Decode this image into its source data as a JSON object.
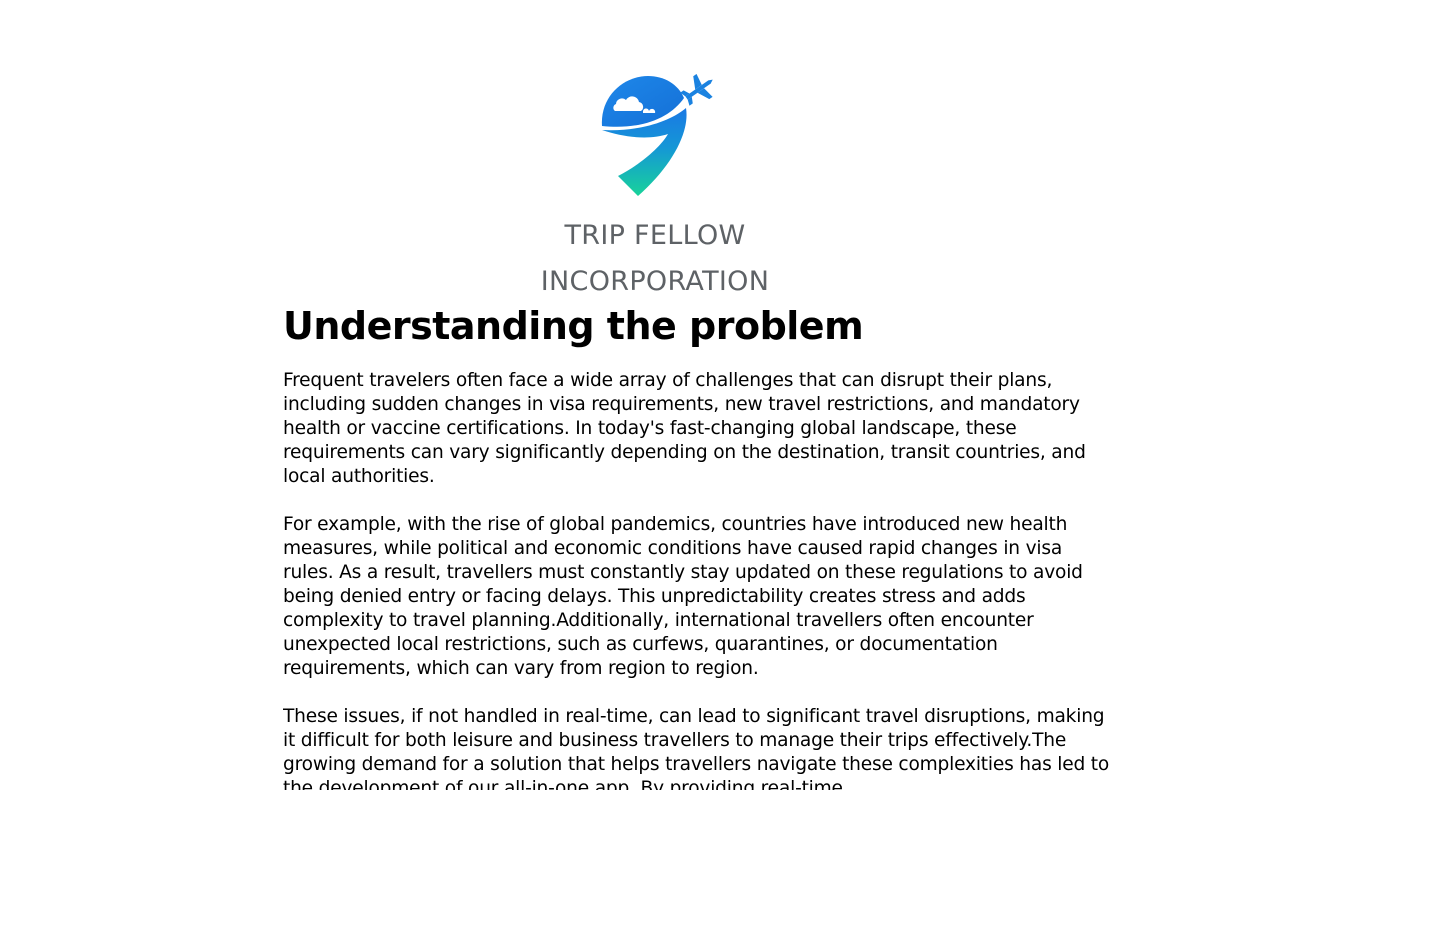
{
  "logo": {
    "line1": "TRIP FELLOW",
    "line2": "INCORPORATION",
    "colors": {
      "pin_top": "#1a7de3",
      "pin_bottom": "#17d19c",
      "plane": "#1a82e0",
      "text": "#5e6266"
    }
  },
  "article": {
    "heading": "Understanding the problem",
    "paragraphs": [
      "Frequent travelers often face a wide array of challenges that can disrupt their plans, including sudden changes in visa requirements, new travel restrictions, and mandatory health or vaccine certifications. In today's fast-changing global landscape, these requirements can vary significantly depending on the destination, transit countries, and local authorities.",
      "For example, with the rise of global pandemics, countries have introduced new health measures, while political and economic conditions have caused rapid changes in visa rules. As a result, travellers must constantly stay updated on these regulations to avoid being denied entry or facing delays. This unpredictability creates stress and adds complexity to travel planning.Additionally, international travellers often encounter unexpected local restrictions, such as curfews, quarantines, or documentation requirements, which can vary from region to region.",
      "These issues, if not handled in real-time, can lead to significant travel disruptions, making it difficult for both leisure and business travellers to manage their trips effectively.The growing demand for a solution that helps travellers navigate these complexities has led to the development of our all-in-one app. By providing real-time"
    ]
  }
}
